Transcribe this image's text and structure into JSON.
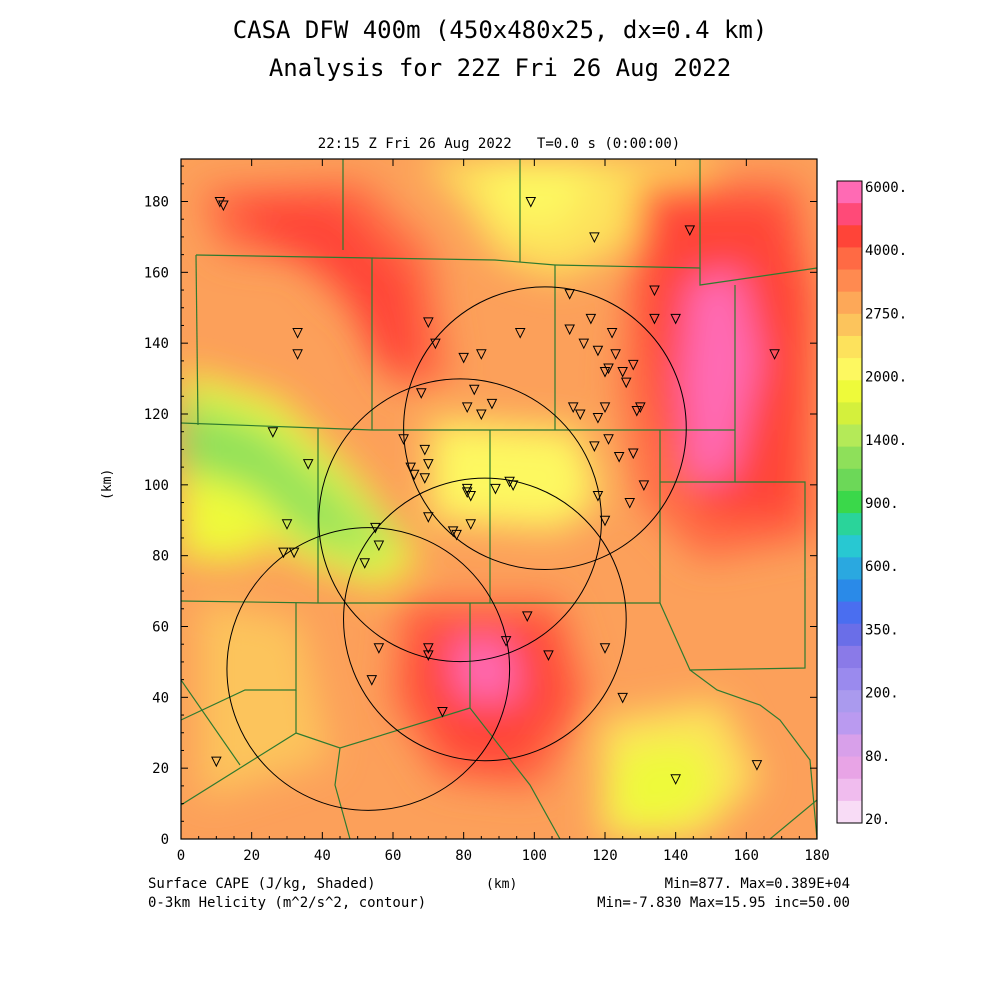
{
  "title": "CASA DFW 400m (450x480x25, dx=0.4 km)",
  "subtitle": "Analysis for 22Z Fri 26 Aug 2022",
  "time_label": "22:15 Z Fri 26 Aug 2022   T=0.0 s (0:00:00)",
  "x_axis_label": "(km)",
  "y_axis_label": "(km)",
  "x_ticks": [
    "0",
    "20",
    "40",
    "60",
    "80",
    "100",
    "120",
    "140",
    "160",
    "180"
  ],
  "y_ticks": [
    "0",
    "20",
    "40",
    "60",
    "80",
    "100",
    "120",
    "140",
    "160",
    "180"
  ],
  "footer": {
    "field1": "Surface CAPE (J/kg, Shaded)",
    "field2": "0-3km Helicity (m^2/s^2, contour)",
    "stats1": "Min=877. Max=0.389E+04",
    "stats2": "Min=-7.830 Max=15.95 inc=50.00"
  },
  "colorbar": {
    "labels": [
      "6000.",
      "4000.",
      "2750.",
      "2000.",
      "1400.",
      "900.",
      "600.",
      "350.",
      "200.",
      "80.",
      "20."
    ],
    "colors": [
      "#ff6ab4",
      "#ff4a78",
      "#ff4438",
      "#ff6a44",
      "#ff8a50",
      "#fda858",
      "#fcc45c",
      "#fde25c",
      "#fdf860",
      "#eefa3a",
      "#d4f03c",
      "#b4ea58",
      "#8ee05a",
      "#6cd858",
      "#3ad84a",
      "#2ad49a",
      "#28c8d2",
      "#2aa8e0",
      "#2a8ae8",
      "#4a6ef0",
      "#6a6ee8",
      "#8a7ae8",
      "#9a8aee",
      "#aa9aee",
      "#ba9af0",
      "#d8a0ea",
      "#e8a4e6",
      "#f0bcee",
      "#f8dcf6"
    ]
  },
  "map": {
    "xlim": [
      0,
      180
    ],
    "ylim": [
      0,
      192
    ],
    "radar_coverage_circles": [
      {
        "center_km": [
          86,
          62
        ],
        "radius_km": 40
      },
      {
        "center_km": [
          103,
          116
        ],
        "radius_km": 40
      },
      {
        "center_km": [
          79,
          90
        ],
        "radius_km": 40
      },
      {
        "center_km": [
          53,
          48
        ],
        "radius_km": 40
      }
    ],
    "station_markers_km": [
      [
        11,
        180
      ],
      [
        12,
        179
      ],
      [
        99,
        180
      ],
      [
        117,
        170
      ],
      [
        144,
        172
      ],
      [
        33,
        143
      ],
      [
        33,
        137
      ],
      [
        70,
        146
      ],
      [
        72,
        140
      ],
      [
        68,
        126
      ],
      [
        80,
        136
      ],
      [
        85,
        137
      ],
      [
        83,
        127
      ],
      [
        88,
        123
      ],
      [
        81,
        122
      ],
      [
        85,
        120
      ],
      [
        96,
        143
      ],
      [
        110,
        154
      ],
      [
        110,
        144
      ],
      [
        114,
        140
      ],
      [
        116,
        147
      ],
      [
        118,
        138
      ],
      [
        120,
        132
      ],
      [
        121,
        133
      ],
      [
        123,
        137
      ],
      [
        122,
        143
      ],
      [
        125,
        132
      ],
      [
        126,
        129
      ],
      [
        128,
        134
      ],
      [
        134,
        155
      ],
      [
        134,
        147
      ],
      [
        140,
        147
      ],
      [
        168,
        137
      ],
      [
        111,
        122
      ],
      [
        113,
        120
      ],
      [
        118,
        119
      ],
      [
        120,
        122
      ],
      [
        121,
        113
      ],
      [
        117,
        111
      ],
      [
        124,
        108
      ],
      [
        128,
        109
      ],
      [
        129,
        121
      ],
      [
        130,
        122
      ],
      [
        26,
        115
      ],
      [
        36,
        106
      ],
      [
        63,
        113
      ],
      [
        69,
        110
      ],
      [
        70,
        106
      ],
      [
        65,
        105
      ],
      [
        66,
        103
      ],
      [
        69,
        102
      ],
      [
        81,
        99
      ],
      [
        81,
        98
      ],
      [
        82,
        97
      ],
      [
        93,
        101
      ],
      [
        94,
        100
      ],
      [
        89,
        99
      ],
      [
        82,
        89
      ],
      [
        70,
        91
      ],
      [
        77,
        87
      ],
      [
        78,
        86
      ],
      [
        118,
        97
      ],
      [
        120,
        90
      ],
      [
        127,
        95
      ],
      [
        131,
        100
      ],
      [
        30,
        89
      ],
      [
        29,
        81
      ],
      [
        32,
        81
      ],
      [
        55,
        88
      ],
      [
        56,
        83
      ],
      [
        52,
        78
      ],
      [
        98,
        63
      ],
      [
        92,
        56
      ],
      [
        104,
        52
      ],
      [
        120,
        54
      ],
      [
        125,
        40
      ],
      [
        56,
        54
      ],
      [
        70,
        54
      ],
      [
        70,
        52
      ],
      [
        54,
        45
      ],
      [
        74,
        36
      ],
      [
        10,
        22
      ],
      [
        140,
        17
      ],
      [
        163,
        21
      ]
    ],
    "cape_field_centers": [
      {
        "center_km": [
          86,
          50
        ],
        "value": 3890
      },
      {
        "center_km": [
          150,
          125
        ],
        "value": 3800
      },
      {
        "center_km": [
          40,
          165
        ],
        "value": 3200
      },
      {
        "center_km": [
          20,
          100
        ],
        "value": 877
      }
    ]
  }
}
